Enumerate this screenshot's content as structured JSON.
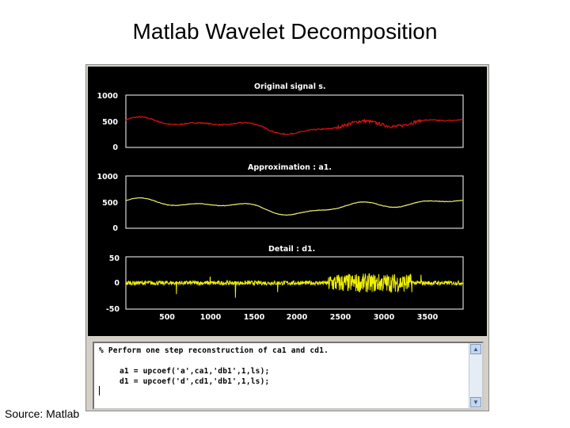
{
  "slide": {
    "title": "Matlab Wavelet Decomposition",
    "source": "Source: Matlab"
  },
  "plots": {
    "original": {
      "title": "Original signal s.",
      "yticks": [
        "1000",
        "500",
        "0"
      ],
      "color": "#e01010"
    },
    "approx": {
      "title": "Approximation : a1.",
      "yticks": [
        "1000",
        "500",
        "0"
      ],
      "color": "#f0f070"
    },
    "detail": {
      "title": "Detail : d1.",
      "yticks": [
        "50",
        "0",
        "-50"
      ],
      "color": "#f0f000"
    }
  },
  "xticks": [
    "500",
    "1000",
    "1500",
    "2000",
    "2500",
    "3000",
    "3500"
  ],
  "command_window": {
    "comment": "% Perform one step reconstruction of ca1 and cd1.",
    "line1": "a1 = upcoef('a',ca1,'db1',1,ls);",
    "line2": "d1 = upcoef('d',cd1,'db1',1,ls);"
  },
  "colors": {
    "figure_bg": "#000000",
    "window_frame": "#d4d0c8"
  }
}
